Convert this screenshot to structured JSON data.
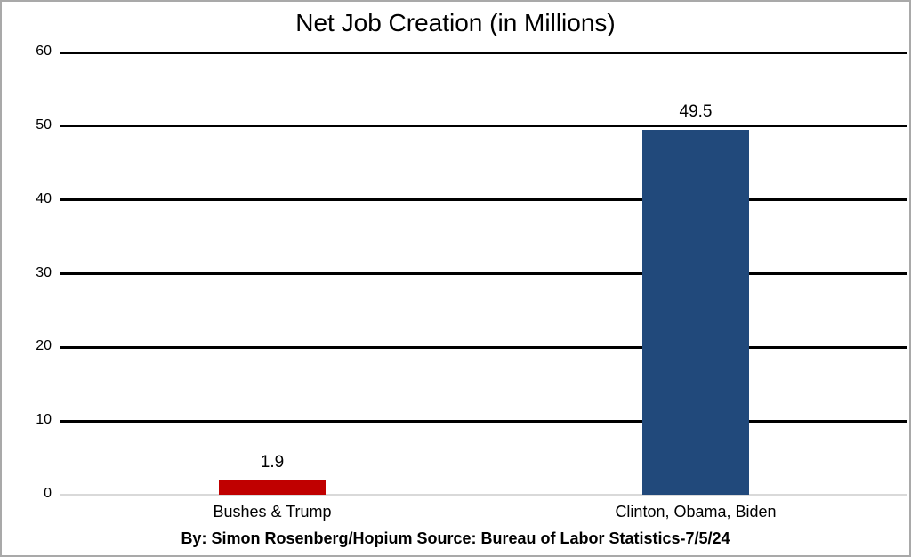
{
  "chart_data": {
    "type": "bar",
    "title": "Net Job Creation (in Millions)",
    "categories": [
      "Bushes & Trump",
      "Clinton, Obama, Biden"
    ],
    "values": [
      1.9,
      49.5
    ],
    "value_labels": [
      "1.9",
      "49.5"
    ],
    "bar_colors": [
      "#c00000",
      "#21497b"
    ],
    "yticks": [
      0,
      10,
      20,
      30,
      40,
      50,
      60
    ],
    "ylim": [
      0,
      60
    ],
    "xlabel": "",
    "ylabel": "",
    "grid": "horizontal-black-with-gray-zero-baseline",
    "gridline_color": "#000000",
    "baseline_color": "#d9d9d9",
    "legend": "none",
    "footer": "By: Simon Rosenberg/Hopium Source: Bureau of Labor Statistics-7/5/24"
  }
}
